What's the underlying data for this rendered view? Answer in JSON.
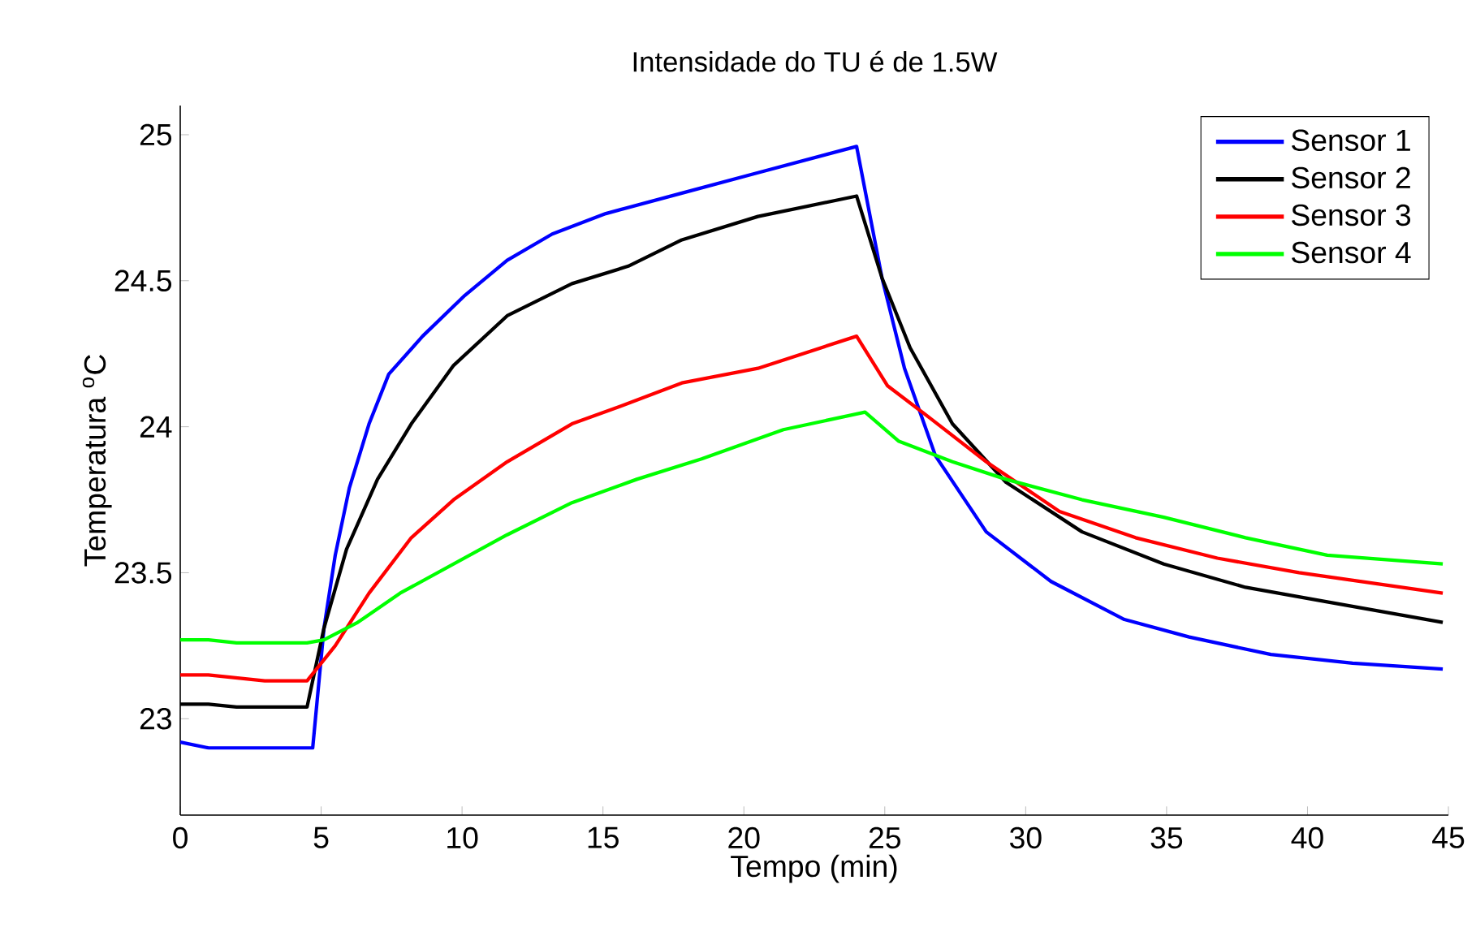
{
  "chart_data": {
    "type": "line",
    "title": "Intensidade do TU é de 1.5W",
    "xlabel": "Tempo (min)",
    "ylabel": "Temperatura $^{o}$C",
    "xlim": [
      0,
      45
    ],
    "ylim": [
      22.67,
      25.1
    ],
    "xticks": [
      0,
      5,
      10,
      15,
      20,
      25,
      30,
      35,
      40,
      45
    ],
    "yticks": [
      23,
      23.5,
      24,
      24.5,
      25
    ],
    "legend": "top right",
    "marker": "none",
    "line_style": "solid",
    "series": [
      {
        "name": "Sensor 1",
        "color": "#0000ff",
        "x": [
          0,
          1,
          2,
          3,
          4,
          4.7,
          5.1,
          5.5,
          6.0,
          6.7,
          7.4,
          8.6,
          10.1,
          11.6,
          13.2,
          15.1,
          17.8,
          20.5,
          24.0,
          24.9,
          25.7,
          26.8,
          28.6,
          30.9,
          33.5,
          35.8,
          38.7,
          41.6,
          44.8
        ],
        "values": [
          22.92,
          22.9,
          22.9,
          22.9,
          22.9,
          22.9,
          23.31,
          23.56,
          23.79,
          24.01,
          24.18,
          24.31,
          24.45,
          24.57,
          24.66,
          24.73,
          24.8,
          24.87,
          24.96,
          24.51,
          24.2,
          23.9,
          23.64,
          23.47,
          23.34,
          23.28,
          23.22,
          23.19,
          23.17
        ]
      },
      {
        "name": "Sensor 2",
        "color": "#000000",
        "x": [
          0,
          1,
          2,
          3,
          4,
          4.5,
          5.1,
          5.9,
          7.0,
          8.2,
          9.7,
          11.6,
          13.9,
          15.9,
          17.8,
          20.5,
          24.0,
          24.9,
          25.9,
          27.4,
          29.3,
          32.0,
          34.9,
          37.8,
          40.7,
          44.8
        ],
        "values": [
          23.05,
          23.05,
          23.04,
          23.04,
          23.04,
          23.04,
          23.31,
          23.58,
          23.82,
          24.01,
          24.21,
          24.38,
          24.49,
          24.55,
          24.64,
          24.72,
          24.79,
          24.51,
          24.27,
          24.01,
          23.81,
          23.64,
          23.53,
          23.45,
          23.4,
          23.33
        ]
      },
      {
        "name": "Sensor 3",
        "color": "#ff0000",
        "x": [
          0,
          1,
          2,
          3,
          4,
          4.5,
          5.5,
          6.7,
          8.2,
          9.7,
          11.6,
          13.9,
          15.9,
          17.8,
          20.5,
          24.0,
          25.1,
          26.6,
          28.6,
          31.2,
          33.9,
          36.8,
          39.7,
          44.8
        ],
        "values": [
          23.15,
          23.15,
          23.14,
          23.13,
          23.13,
          23.13,
          23.25,
          23.43,
          23.62,
          23.75,
          23.88,
          24.01,
          24.08,
          24.15,
          24.2,
          24.31,
          24.14,
          24.03,
          23.88,
          23.71,
          23.62,
          23.55,
          23.5,
          23.43
        ]
      },
      {
        "name": "Sensor 4",
        "color": "#00ff00",
        "x": [
          0,
          1,
          2,
          3,
          4,
          4.5,
          5.1,
          6.3,
          7.8,
          9.7,
          11.6,
          13.9,
          16.2,
          18.5,
          21.4,
          24.3,
          25.5,
          27.4,
          29.3,
          32.0,
          34.9,
          37.8,
          40.7,
          44.8
        ],
        "values": [
          23.27,
          23.27,
          23.26,
          23.26,
          23.26,
          23.26,
          23.27,
          23.33,
          23.43,
          23.53,
          23.63,
          23.74,
          23.82,
          23.89,
          23.99,
          24.05,
          23.95,
          23.88,
          23.82,
          23.75,
          23.69,
          23.62,
          23.56,
          23.53
        ]
      }
    ]
  }
}
